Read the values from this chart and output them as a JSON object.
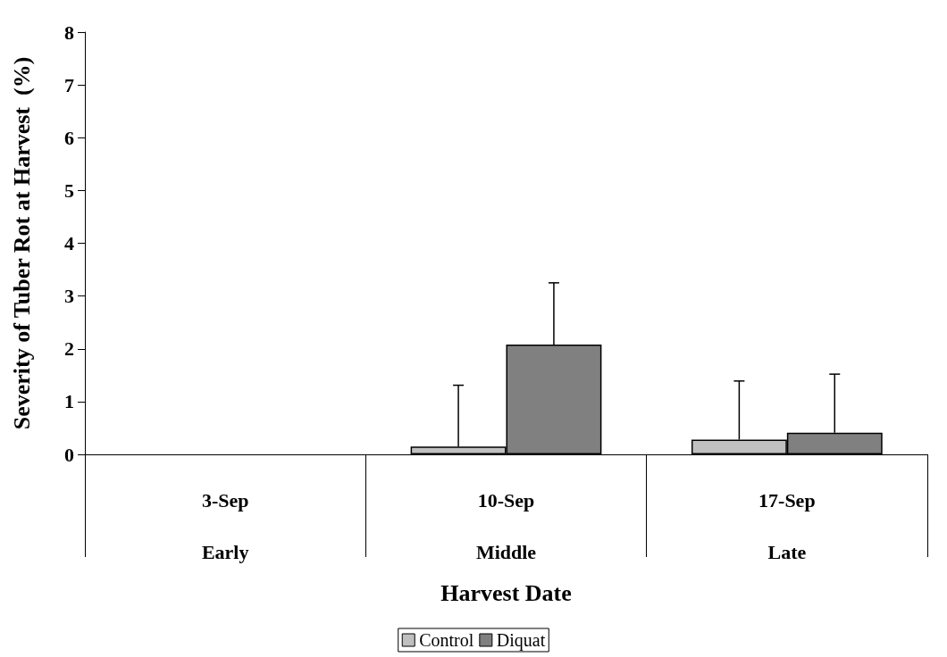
{
  "chart_data": {
    "type": "bar",
    "xlabel": "Harvest Date",
    "ylabel": "Severity of Tuber Rot at Harvest  (%)",
    "categories": [
      "3-Sep\nEarly",
      "10-Sep\nMiddle",
      "17-Sep\nLate"
    ],
    "series": [
      {
        "name": "Control",
        "color": "#c0c0c0",
        "values": [
          0,
          0.15,
          0.28
        ],
        "errors": [
          null,
          [
            0.15,
            1.31
          ],
          [
            0.28,
            1.39
          ]
        ]
      },
      {
        "name": "Diquat",
        "color": "#808080",
        "values": [
          0,
          2.08,
          0.41
        ],
        "errors": [
          null,
          [
            2.08,
            3.25
          ],
          [
            0.41,
            1.52
          ]
        ]
      }
    ],
    "ylim": [
      0,
      8
    ],
    "yticks": [
      0,
      1,
      2,
      3,
      4,
      5,
      6,
      7,
      8
    ],
    "grid": false,
    "legend": "bottom"
  }
}
